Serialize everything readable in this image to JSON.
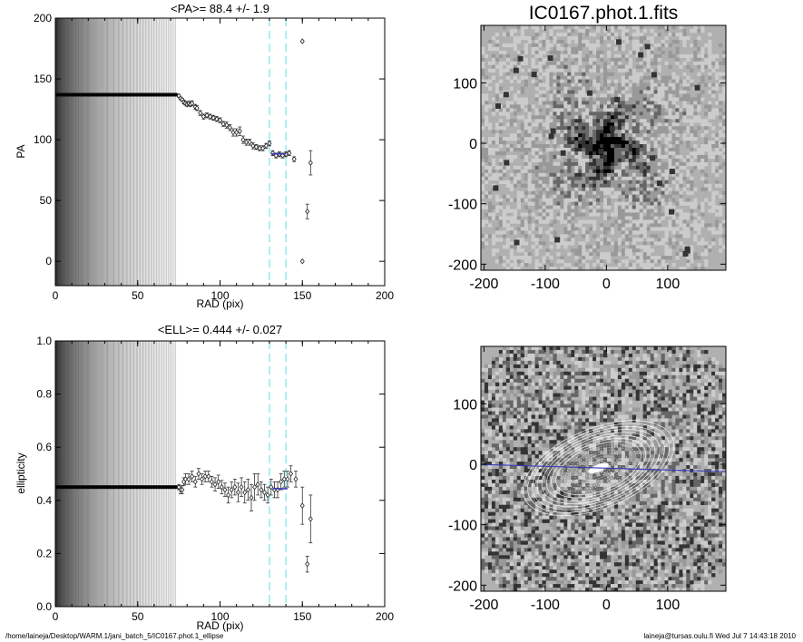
{
  "page": {
    "image_title": "IC0167.phot.1.fits",
    "footer_left": "/home/laineja/Desktop/WARM.1/jani_batch_5/IC0167.phot.1_ellipse",
    "footer_right": "laineja@tursas.oulu.fi  Wed Jul  7 14:43:18 2010"
  },
  "chart_data": [
    {
      "type": "scatter",
      "title": "<PA>=  88.4 +/-   1.9",
      "xlabel": "RAD (pix)",
      "ylabel": "PA",
      "xlim": [
        0,
        200
      ],
      "ylim": [
        -20,
        200
      ],
      "xticks": [
        "0",
        "50",
        "100",
        "150",
        "200"
      ],
      "yticks": [
        "0",
        "50",
        "100",
        "150",
        "200"
      ],
      "xtick_values": [
        0,
        50,
        100,
        150,
        200
      ],
      "ytick_values": [
        0,
        50,
        100,
        150,
        200
      ],
      "fill_extent": 74,
      "flat_value": 137,
      "vlines": [
        130,
        140
      ],
      "mean_segment": {
        "x": [
          131,
          140
        ],
        "y": 88.4
      },
      "points": [
        {
          "x": 75,
          "y": 136,
          "err": 1
        },
        {
          "x": 76,
          "y": 134,
          "err": 1
        },
        {
          "x": 77,
          "y": 133,
          "err": 1
        },
        {
          "x": 78,
          "y": 131,
          "err": 1.5
        },
        {
          "x": 79,
          "y": 130,
          "err": 1.5
        },
        {
          "x": 80,
          "y": 129,
          "err": 1.5
        },
        {
          "x": 81,
          "y": 130,
          "err": 1.5
        },
        {
          "x": 82,
          "y": 129,
          "err": 1.5
        },
        {
          "x": 83,
          "y": 130,
          "err": 2
        },
        {
          "x": 85,
          "y": 127,
          "err": 2
        },
        {
          "x": 86,
          "y": 126,
          "err": 2
        },
        {
          "x": 88,
          "y": 122,
          "err": 2
        },
        {
          "x": 90,
          "y": 119,
          "err": 2
        },
        {
          "x": 92,
          "y": 120,
          "err": 2
        },
        {
          "x": 94,
          "y": 119,
          "err": 2
        },
        {
          "x": 96,
          "y": 118,
          "err": 2
        },
        {
          "x": 98,
          "y": 117,
          "err": 2
        },
        {
          "x": 100,
          "y": 116,
          "err": 2
        },
        {
          "x": 102,
          "y": 113,
          "err": 2
        },
        {
          "x": 104,
          "y": 112,
          "err": 2.5
        },
        {
          "x": 106,
          "y": 110,
          "err": 2.5
        },
        {
          "x": 108,
          "y": 106,
          "err": 3
        },
        {
          "x": 110,
          "y": 106,
          "err": 3
        },
        {
          "x": 112,
          "y": 107,
          "err": 3.5
        },
        {
          "x": 114,
          "y": 100,
          "err": 3
        },
        {
          "x": 116,
          "y": 98,
          "err": 2.5
        },
        {
          "x": 118,
          "y": 98,
          "err": 2.5
        },
        {
          "x": 120,
          "y": 95,
          "err": 2.5
        },
        {
          "x": 122,
          "y": 94,
          "err": 2
        },
        {
          "x": 124,
          "y": 93,
          "err": 2
        },
        {
          "x": 126,
          "y": 93,
          "err": 2
        },
        {
          "x": 128,
          "y": 95,
          "err": 2
        },
        {
          "x": 130,
          "y": 97,
          "err": 2
        },
        {
          "x": 132,
          "y": 89,
          "err": 2
        },
        {
          "x": 134,
          "y": 87,
          "err": 2
        },
        {
          "x": 136,
          "y": 88,
          "err": 2
        },
        {
          "x": 138,
          "y": 87,
          "err": 2
        },
        {
          "x": 140,
          "y": 88,
          "err": 2
        },
        {
          "x": 142,
          "y": 89,
          "err": 2
        },
        {
          "x": 145,
          "y": 84,
          "err": 2
        },
        {
          "x": 150,
          "y": 181,
          "err": 0
        },
        {
          "x": 150,
          "y": 0,
          "err": 0
        },
        {
          "x": 153,
          "y": 41,
          "err": 6
        },
        {
          "x": 155,
          "y": 81,
          "err": 10
        }
      ]
    },
    {
      "type": "scatter",
      "title": "<ELL>= 0.444 +/-  0.027",
      "xlabel": "RAD (pix)",
      "ylabel": "ellipticity",
      "xlim": [
        0,
        200
      ],
      "ylim": [
        0,
        1
      ],
      "xticks": [
        "0",
        "50",
        "100",
        "150",
        "200"
      ],
      "yticks": [
        "0.0",
        "0.2",
        "0.4",
        "0.6",
        "0.8",
        "1.0"
      ],
      "xtick_values": [
        0,
        50,
        100,
        150,
        200
      ],
      "ytick_values": [
        0,
        0.2,
        0.4,
        0.6,
        0.8,
        1.0
      ],
      "fill_extent": 74,
      "flat_value": 0.45,
      "vlines": [
        130,
        140
      ],
      "mean_segment": {
        "x": [
          132,
          141
        ],
        "y": 0.444
      },
      "points": [
        {
          "x": 75,
          "y": 0.45,
          "err": 0.01
        },
        {
          "x": 76,
          "y": 0.44,
          "err": 0.015
        },
        {
          "x": 77,
          "y": 0.44,
          "err": 0.015
        },
        {
          "x": 78,
          "y": 0.47,
          "err": 0.015
        },
        {
          "x": 79,
          "y": 0.48,
          "err": 0.02
        },
        {
          "x": 81,
          "y": 0.48,
          "err": 0.02
        },
        {
          "x": 83,
          "y": 0.49,
          "err": 0.02
        },
        {
          "x": 85,
          "y": 0.47,
          "err": 0.02
        },
        {
          "x": 87,
          "y": 0.5,
          "err": 0.02
        },
        {
          "x": 89,
          "y": 0.48,
          "err": 0.02
        },
        {
          "x": 91,
          "y": 0.49,
          "err": 0.02
        },
        {
          "x": 93,
          "y": 0.49,
          "err": 0.02
        },
        {
          "x": 95,
          "y": 0.47,
          "err": 0.02
        },
        {
          "x": 97,
          "y": 0.46,
          "err": 0.025
        },
        {
          "x": 99,
          "y": 0.47,
          "err": 0.025
        },
        {
          "x": 101,
          "y": 0.45,
          "err": 0.025
        },
        {
          "x": 103,
          "y": 0.44,
          "err": 0.025
        },
        {
          "x": 105,
          "y": 0.42,
          "err": 0.03
        },
        {
          "x": 107,
          "y": 0.44,
          "err": 0.03
        },
        {
          "x": 109,
          "y": 0.45,
          "err": 0.03
        },
        {
          "x": 111,
          "y": 0.43,
          "err": 0.035
        },
        {
          "x": 113,
          "y": 0.45,
          "err": 0.035
        },
        {
          "x": 115,
          "y": 0.43,
          "err": 0.04
        },
        {
          "x": 117,
          "y": 0.44,
          "err": 0.04
        },
        {
          "x": 119,
          "y": 0.41,
          "err": 0.05
        },
        {
          "x": 121,
          "y": 0.45,
          "err": 0.05
        },
        {
          "x": 123,
          "y": 0.46,
          "err": 0.04
        },
        {
          "x": 125,
          "y": 0.44,
          "err": 0.03
        },
        {
          "x": 127,
          "y": 0.43,
          "err": 0.03
        },
        {
          "x": 129,
          "y": 0.42,
          "err": 0.03
        },
        {
          "x": 131,
          "y": 0.45,
          "err": 0.03
        },
        {
          "x": 133,
          "y": 0.44,
          "err": 0.03
        },
        {
          "x": 135,
          "y": 0.44,
          "err": 0.03
        },
        {
          "x": 137,
          "y": 0.47,
          "err": 0.03
        },
        {
          "x": 139,
          "y": 0.48,
          "err": 0.03
        },
        {
          "x": 141,
          "y": 0.48,
          "err": 0.03
        },
        {
          "x": 143,
          "y": 0.5,
          "err": 0.03
        },
        {
          "x": 146,
          "y": 0.48,
          "err": 0.03
        },
        {
          "x": 150,
          "y": 0.38,
          "err": 0.07
        },
        {
          "x": 153,
          "y": 0.16,
          "err": 0.03
        },
        {
          "x": 155,
          "y": 0.33,
          "err": 0.09
        }
      ]
    }
  ],
  "images": [
    {
      "title": "IC0167.phot.1.fits",
      "xticks": [
        "-200",
        "-100",
        "0",
        "100"
      ],
      "yticks": [
        "100",
        "0",
        "-100",
        "-200"
      ],
      "xtick_values": [
        -200,
        -100,
        0,
        100
      ],
      "ytick_values": [
        100,
        0,
        -100,
        -200
      ],
      "xlim": [
        -205,
        195
      ],
      "ylim": [
        -210,
        195
      ]
    },
    {
      "title": "",
      "xticks": [
        "-200",
        "-100",
        "0",
        "100"
      ],
      "yticks": [
        "100",
        "0",
        "-100",
        "-200"
      ],
      "xtick_values": [
        -200,
        -100,
        0,
        100
      ],
      "ytick_values": [
        100,
        0,
        -100,
        -200
      ],
      "xlim": [
        -205,
        195
      ],
      "ylim": [
        -210,
        195
      ],
      "pa_line_color": "#3a3ab8"
    }
  ],
  "colors": {
    "model_line": "#3a3ab8",
    "vline": "#7fe8ee",
    "sky": "#b0b0b0"
  }
}
